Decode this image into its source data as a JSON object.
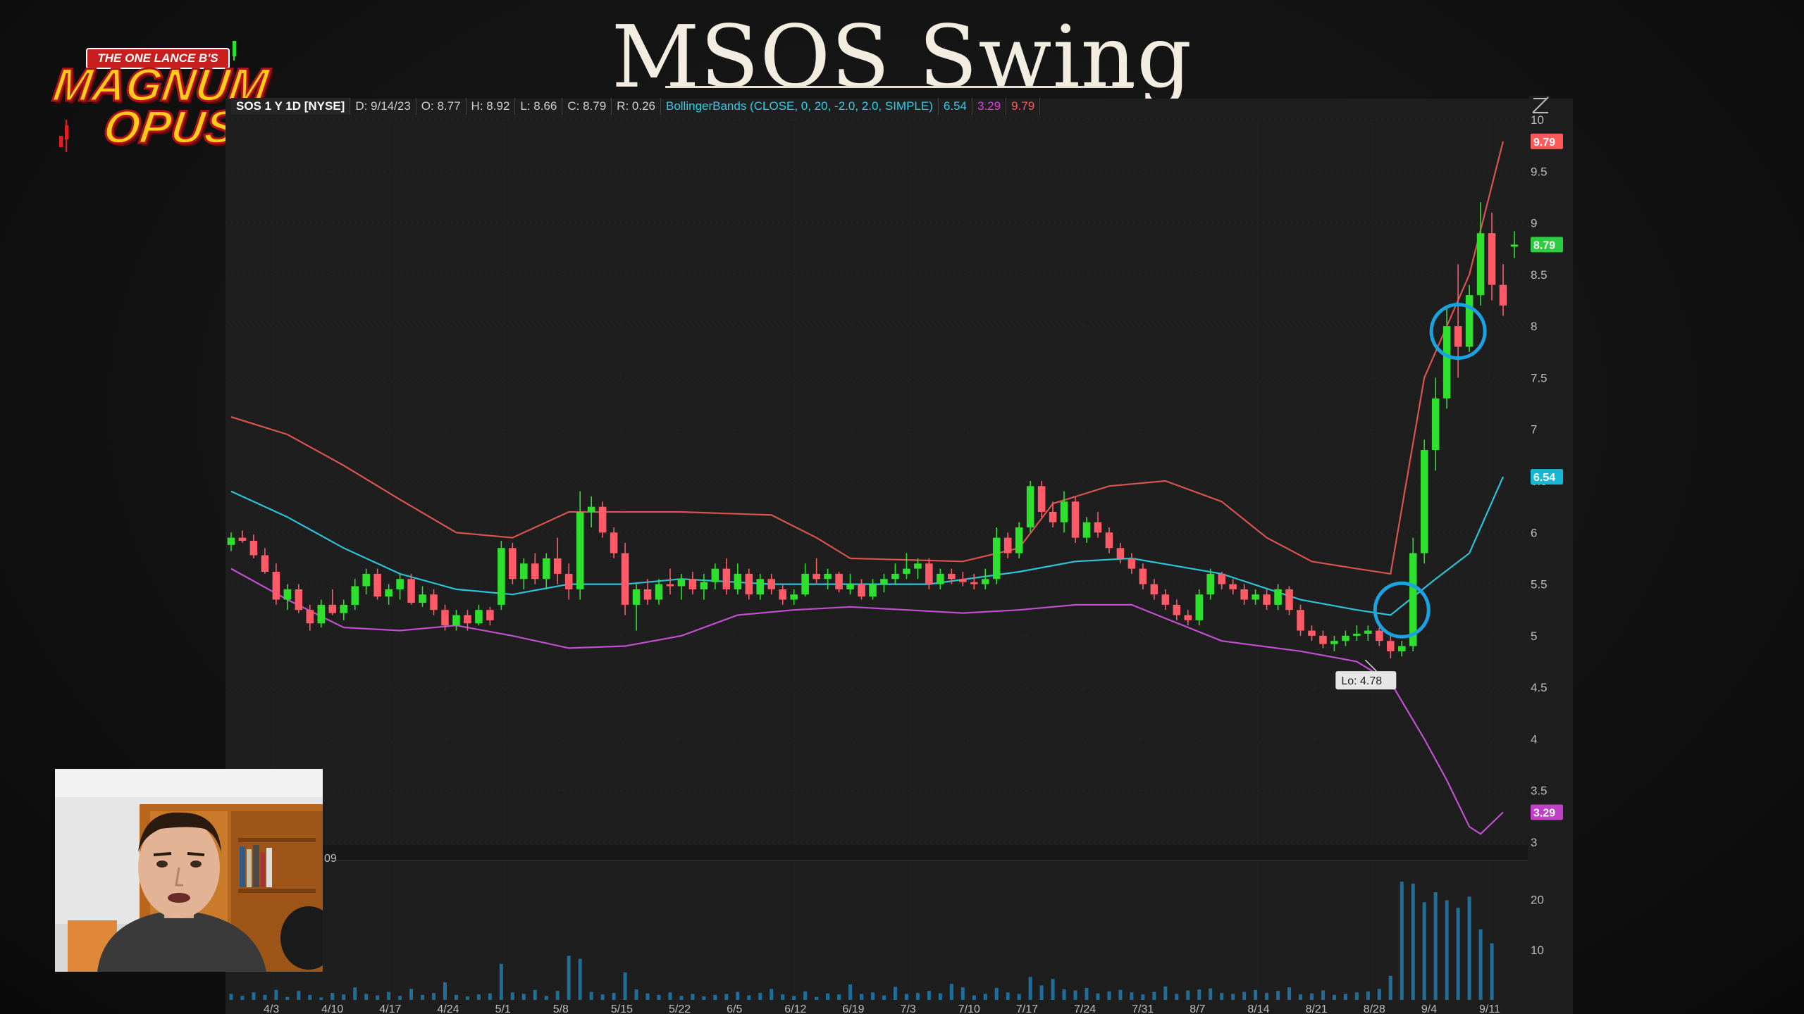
{
  "title": "MSOS Swing",
  "logo": {
    "banner": "THE ONE LANCE B'S",
    "line1": "MAGNUM",
    "line2": "OPUS"
  },
  "header": {
    "symbol": "SOS 1 Y 1D [NYSE]",
    "date": "D: 9/14/23",
    "open": "O: 8.77",
    "high": "H: 8.92",
    "low": "L: 8.66",
    "close": "C: 8.79",
    "range": "R: 0.26",
    "indicator": "BollingerBands (CLOSE, 0, 20, -2.0, 2.0, SIMPLE)",
    "mid_value": "6.54",
    "lower_value": "3.29",
    "upper_value": "9.79"
  },
  "volume_pane_label": "09",
  "colors": {
    "up": "#2ee02e",
    "down": "#ff5a68",
    "mid_band": "#2bc4d8",
    "upper_band": "#d9534f",
    "lower_band": "#c050d0",
    "circle": "#1aa3e0",
    "volume": "#1f6e9a"
  },
  "chart_data": {
    "type": "candlestick",
    "title": "MSOS Swing",
    "ylim": [
      3,
      10
    ],
    "yticks": [
      3,
      3.5,
      4,
      4.5,
      5,
      5.5,
      6,
      6.5,
      7,
      7.5,
      8,
      8.5,
      9,
      9.5,
      10
    ],
    "x_tick_labels": [
      "4/3",
      "4/10",
      "4/17",
      "4/24",
      "5/1",
      "5/8",
      "5/15",
      "5/22",
      "6/5",
      "6/12",
      "6/19",
      "7/3",
      "7/10",
      "7/17",
      "7/24",
      "7/31",
      "8/7",
      "8/14",
      "8/21",
      "8/28",
      "9/4",
      "9/11"
    ],
    "price_badges": [
      {
        "label": "9.79",
        "value": 9.79,
        "color": "#ff5a5a"
      },
      {
        "label": "8.79",
        "value": 8.79,
        "color": "#2ecc40"
      },
      {
        "label": "6.54",
        "value": 6.54,
        "color": "#17b8d6"
      },
      {
        "label": "3.29",
        "value": 3.29,
        "color": "#c040c8"
      }
    ],
    "annotation": {
      "label": "Lo: 4.78",
      "value": 4.78,
      "bar": 102
    },
    "circles": [
      {
        "bar": 104,
        "value": 5.25
      },
      {
        "bar": 109,
        "value": 7.95
      }
    ],
    "candles": [
      [
        5.88,
        6.0,
        5.82,
        5.95
      ],
      [
        5.95,
        6.02,
        5.9,
        5.92
      ],
      [
        5.92,
        5.98,
        5.75,
        5.78
      ],
      [
        5.78,
        5.85,
        5.6,
        5.62
      ],
      [
        5.62,
        5.7,
        5.3,
        5.35
      ],
      [
        5.35,
        5.5,
        5.25,
        5.45
      ],
      [
        5.45,
        5.5,
        5.22,
        5.25
      ],
      [
        5.25,
        5.3,
        5.05,
        5.12
      ],
      [
        5.12,
        5.35,
        5.08,
        5.3
      ],
      [
        5.3,
        5.45,
        5.2,
        5.22
      ],
      [
        5.22,
        5.35,
        5.15,
        5.3
      ],
      [
        5.3,
        5.55,
        5.25,
        5.48
      ],
      [
        5.48,
        5.65,
        5.4,
        5.6
      ],
      [
        5.6,
        5.65,
        5.35,
        5.38
      ],
      [
        5.38,
        5.5,
        5.3,
        5.45
      ],
      [
        5.45,
        5.6,
        5.35,
        5.55
      ],
      [
        5.55,
        5.6,
        5.3,
        5.32
      ],
      [
        5.32,
        5.48,
        5.28,
        5.4
      ],
      [
        5.4,
        5.45,
        5.2,
        5.25
      ],
      [
        5.25,
        5.3,
        5.05,
        5.1
      ],
      [
        5.1,
        5.25,
        5.05,
        5.2
      ],
      [
        5.2,
        5.25,
        5.05,
        5.12
      ],
      [
        5.12,
        5.3,
        5.1,
        5.25
      ],
      [
        5.25,
        5.28,
        5.1,
        5.15
      ],
      [
        5.3,
        5.92,
        5.25,
        5.85
      ],
      [
        5.85,
        5.9,
        5.5,
        5.55
      ],
      [
        5.55,
        5.75,
        5.45,
        5.7
      ],
      [
        5.7,
        5.8,
        5.5,
        5.55
      ],
      [
        5.55,
        5.8,
        5.45,
        5.75
      ],
      [
        5.75,
        5.95,
        5.5,
        5.6
      ],
      [
        5.6,
        5.7,
        5.35,
        5.45
      ],
      [
        5.45,
        6.4,
        5.35,
        6.2
      ],
      [
        6.2,
        6.35,
        6.05,
        6.25
      ],
      [
        6.25,
        6.3,
        5.95,
        6.0
      ],
      [
        6.0,
        6.05,
        5.75,
        5.8
      ],
      [
        5.8,
        5.9,
        5.2,
        5.3
      ],
      [
        5.3,
        5.5,
        5.05,
        5.45
      ],
      [
        5.45,
        5.55,
        5.3,
        5.35
      ],
      [
        5.35,
        5.55,
        5.3,
        5.5
      ],
      [
        5.5,
        5.65,
        5.4,
        5.48
      ],
      [
        5.48,
        5.6,
        5.35,
        5.55
      ],
      [
        5.55,
        5.62,
        5.4,
        5.45
      ],
      [
        5.45,
        5.6,
        5.35,
        5.52
      ],
      [
        5.52,
        5.7,
        5.45,
        5.65
      ],
      [
        5.65,
        5.75,
        5.4,
        5.45
      ],
      [
        5.45,
        5.7,
        5.4,
        5.6
      ],
      [
        5.6,
        5.65,
        5.35,
        5.4
      ],
      [
        5.4,
        5.6,
        5.35,
        5.55
      ],
      [
        5.55,
        5.6,
        5.4,
        5.45
      ],
      [
        5.45,
        5.5,
        5.3,
        5.35
      ],
      [
        5.35,
        5.45,
        5.3,
        5.4
      ],
      [
        5.4,
        5.7,
        5.38,
        5.6
      ],
      [
        5.6,
        5.75,
        5.5,
        5.55
      ],
      [
        5.55,
        5.65,
        5.45,
        5.6
      ],
      [
        5.6,
        5.62,
        5.42,
        5.45
      ],
      [
        5.45,
        5.6,
        5.4,
        5.5
      ],
      [
        5.5,
        5.55,
        5.35,
        5.38
      ],
      [
        5.38,
        5.55,
        5.35,
        5.5
      ],
      [
        5.5,
        5.6,
        5.42,
        5.55
      ],
      [
        5.55,
        5.7,
        5.5,
        5.6
      ],
      [
        5.6,
        5.8,
        5.55,
        5.65
      ],
      [
        5.65,
        5.75,
        5.55,
        5.7
      ],
      [
        5.7,
        5.75,
        5.45,
        5.5
      ],
      [
        5.5,
        5.65,
        5.45,
        5.6
      ],
      [
        5.6,
        5.65,
        5.5,
        5.55
      ],
      [
        5.55,
        5.62,
        5.48,
        5.52
      ],
      [
        5.52,
        5.6,
        5.45,
        5.5
      ],
      [
        5.5,
        5.65,
        5.45,
        5.55
      ],
      [
        5.55,
        6.05,
        5.5,
        5.95
      ],
      [
        5.95,
        6.0,
        5.75,
        5.8
      ],
      [
        5.8,
        6.1,
        5.75,
        6.05
      ],
      [
        6.05,
        6.5,
        6.0,
        6.45
      ],
      [
        6.45,
        6.5,
        6.15,
        6.2
      ],
      [
        6.2,
        6.3,
        6.05,
        6.1
      ],
      [
        6.1,
        6.4,
        6.0,
        6.3
      ],
      [
        6.3,
        6.35,
        5.9,
        5.95
      ],
      [
        5.95,
        6.15,
        5.9,
        6.1
      ],
      [
        6.1,
        6.2,
        5.95,
        6.0
      ],
      [
        6.0,
        6.05,
        5.8,
        5.85
      ],
      [
        5.85,
        5.9,
        5.7,
        5.75
      ],
      [
        5.75,
        5.8,
        5.6,
        5.65
      ],
      [
        5.65,
        5.7,
        5.45,
        5.5
      ],
      [
        5.5,
        5.55,
        5.35,
        5.4
      ],
      [
        5.4,
        5.45,
        5.25,
        5.3
      ],
      [
        5.3,
        5.35,
        5.15,
        5.2
      ],
      [
        5.2,
        5.25,
        5.1,
        5.15
      ],
      [
        5.15,
        5.45,
        5.1,
        5.4
      ],
      [
        5.4,
        5.65,
        5.35,
        5.6
      ],
      [
        5.6,
        5.62,
        5.45,
        5.5
      ],
      [
        5.5,
        5.55,
        5.4,
        5.45
      ],
      [
        5.45,
        5.5,
        5.3,
        5.35
      ],
      [
        5.35,
        5.45,
        5.3,
        5.4
      ],
      [
        5.4,
        5.45,
        5.25,
        5.3
      ],
      [
        5.3,
        5.5,
        5.25,
        5.45
      ],
      [
        5.45,
        5.48,
        5.2,
        5.25
      ],
      [
        5.25,
        5.3,
        5.0,
        5.05
      ],
      [
        5.05,
        5.1,
        4.95,
        5.0
      ],
      [
        5.0,
        5.05,
        4.88,
        4.92
      ],
      [
        4.92,
        5.0,
        4.85,
        4.95
      ],
      [
        4.95,
        5.05,
        4.9,
        5.0
      ],
      [
        5.0,
        5.1,
        4.95,
        5.02
      ],
      [
        5.02,
        5.1,
        4.95,
        5.05
      ],
      [
        5.05,
        5.08,
        4.9,
        4.95
      ],
      [
        4.95,
        5.0,
        4.78,
        4.85
      ],
      [
        4.85,
        4.95,
        4.8,
        4.9
      ],
      [
        4.9,
        5.95,
        4.85,
        5.8
      ],
      [
        5.8,
        6.9,
        5.7,
        6.8
      ],
      [
        6.8,
        7.5,
        6.6,
        7.3
      ],
      [
        7.3,
        8.2,
        7.2,
        8.0
      ],
      [
        8.0,
        8.6,
        7.5,
        7.8
      ],
      [
        7.8,
        8.4,
        7.75,
        8.3
      ],
      [
        8.3,
        9.2,
        8.2,
        8.9
      ],
      [
        8.9,
        9.1,
        8.25,
        8.4
      ],
      [
        8.4,
        8.6,
        8.1,
        8.2
      ],
      [
        8.77,
        8.92,
        8.66,
        8.79
      ]
    ],
    "bands": {
      "upper": [
        [
          0,
          7.12
        ],
        [
          5,
          6.95
        ],
        [
          10,
          6.65
        ],
        [
          15,
          6.32
        ],
        [
          20,
          6.0
        ],
        [
          25,
          5.95
        ],
        [
          28,
          6.1
        ],
        [
          30,
          6.2
        ],
        [
          35,
          6.2
        ],
        [
          40,
          6.2
        ],
        [
          48,
          6.17
        ],
        [
          52,
          5.95
        ],
        [
          55,
          5.75
        ],
        [
          65,
          5.72
        ],
        [
          70,
          5.85
        ],
        [
          73,
          6.28
        ],
        [
          78,
          6.45
        ],
        [
          83,
          6.5
        ],
        [
          88,
          6.3
        ],
        [
          92,
          5.95
        ],
        [
          96,
          5.72
        ],
        [
          100,
          5.65
        ],
        [
          103,
          5.6
        ],
        [
          106,
          7.5
        ],
        [
          110,
          8.5
        ],
        [
          113,
          9.79
        ]
      ],
      "mid": [
        [
          0,
          6.4
        ],
        [
          5,
          6.15
        ],
        [
          10,
          5.85
        ],
        [
          15,
          5.6
        ],
        [
          20,
          5.45
        ],
        [
          25,
          5.4
        ],
        [
          30,
          5.5
        ],
        [
          35,
          5.5
        ],
        [
          40,
          5.55
        ],
        [
          48,
          5.5
        ],
        [
          55,
          5.5
        ],
        [
          62,
          5.5
        ],
        [
          70,
          5.62
        ],
        [
          75,
          5.72
        ],
        [
          80,
          5.75
        ],
        [
          88,
          5.6
        ],
        [
          95,
          5.35
        ],
        [
          100,
          5.25
        ],
        [
          103,
          5.2
        ],
        [
          107,
          5.55
        ],
        [
          110,
          5.8
        ],
        [
          113,
          6.54
        ]
      ],
      "lower": [
        [
          0,
          5.65
        ],
        [
          5,
          5.35
        ],
        [
          10,
          5.08
        ],
        [
          15,
          5.05
        ],
        [
          20,
          5.1
        ],
        [
          25,
          5.0
        ],
        [
          30,
          4.88
        ],
        [
          35,
          4.9
        ],
        [
          40,
          5.0
        ],
        [
          45,
          5.2
        ],
        [
          50,
          5.25
        ],
        [
          55,
          5.28
        ],
        [
          60,
          5.25
        ],
        [
          65,
          5.22
        ],
        [
          70,
          5.25
        ],
        [
          75,
          5.3
        ],
        [
          80,
          5.3
        ],
        [
          88,
          4.95
        ],
        [
          95,
          4.85
        ],
        [
          100,
          4.75
        ],
        [
          103,
          4.55
        ],
        [
          106,
          4.0
        ],
        [
          108,
          3.6
        ],
        [
          110,
          3.15
        ],
        [
          111,
          3.08
        ],
        [
          113,
          3.29
        ]
      ]
    },
    "volume": {
      "ylim": [
        0,
        26
      ],
      "yticks": [
        10,
        20
      ],
      "values": [
        1.2,
        0.8,
        1.5,
        1,
        2,
        0.6,
        1.8,
        1,
        0.5,
        1.4,
        1.1,
        2.5,
        1.2,
        0.9,
        1.6,
        0.8,
        2.2,
        1,
        1.4,
        3.5,
        1,
        0.7,
        1.1,
        1.3,
        7.2,
        1.5,
        1.2,
        2,
        0.8,
        1.8,
        8.8,
        8.2,
        1.6,
        1.1,
        1.4,
        5.5,
        2.1,
        1.3,
        1,
        1.5,
        0.8,
        1.2,
        0.7,
        1,
        1.2,
        1.6,
        0.9,
        1.4,
        2.2,
        1.1,
        0.8,
        1.7,
        0.6,
        1.3,
        1.1,
        3.1,
        1.2,
        1.5,
        0.9,
        2.6,
        1.2,
        1.4,
        1.8,
        1.3,
        3.2,
        2.5,
        0.9,
        1.2,
        2.4,
        1.5,
        1.2,
        4.6,
        2.9,
        4.2,
        2.1,
        1.9,
        2.4,
        1.3,
        1.7,
        2,
        1.5,
        1.1,
        1.6,
        2.7,
        1.2,
        1.9,
        2.1,
        2.3,
        1.4,
        1.2,
        1.6,
        2,
        1.4,
        1.8,
        2.5,
        1.1,
        1.3,
        1.9,
        1,
        1.2,
        1.5,
        1.7,
        2.2,
        4.8,
        23.6,
        23.2,
        19.5,
        21.5,
        19.9,
        18.4,
        20.6,
        14.1,
        11.3
      ]
    }
  }
}
